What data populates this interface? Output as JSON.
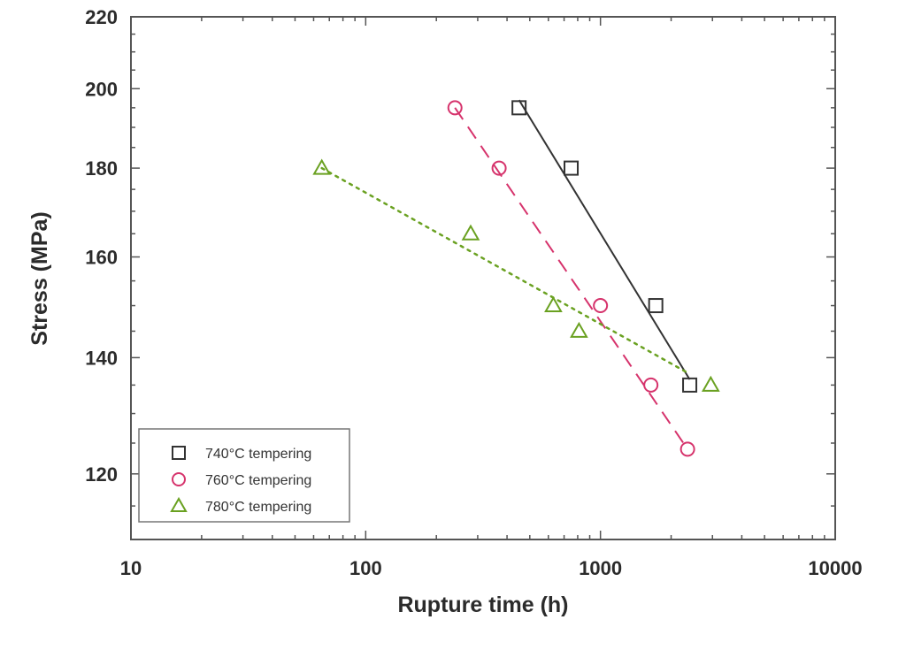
{
  "chart_data": {
    "type": "scatter",
    "title": "",
    "xlabel": "Rupture time (h)",
    "ylabel": "Stress (MPa)",
    "x_scale": "log",
    "y_scale": "log",
    "xlim": [
      10,
      10000
    ],
    "ylim": [
      110,
      220
    ],
    "x_ticks": [
      10,
      100,
      1000,
      10000
    ],
    "x_tick_labels": [
      "10",
      "100",
      "1000",
      "10000"
    ],
    "y_ticks": [
      120,
      140,
      160,
      180,
      200,
      220
    ],
    "y_tick_labels": [
      "120",
      "140",
      "160",
      "180",
      "200",
      "220"
    ],
    "grid": false,
    "legend_position": "bottom-left",
    "series": [
      {
        "name": "740°C tempering",
        "marker": "square",
        "line_style": "solid",
        "color": "#333333",
        "points": [
          [
            450,
            195
          ],
          [
            750,
            180
          ],
          [
            1720,
            150
          ],
          [
            2400,
            135
          ]
        ],
        "fit": [
          [
            450,
            197
          ],
          [
            2400,
            136
          ]
        ]
      },
      {
        "name": "760°C tempering",
        "marker": "circle",
        "line_style": "dashed",
        "color": "#d6336c",
        "points": [
          [
            240,
            195
          ],
          [
            370,
            180
          ],
          [
            1000,
            150
          ],
          [
            1640,
            135
          ],
          [
            2350,
            124
          ]
        ],
        "fit": [
          [
            240,
            195
          ],
          [
            2350,
            124
          ]
        ]
      },
      {
        "name": "780°C tempering",
        "marker": "triangle",
        "line_style": "dotted",
        "color": "#6aa121",
        "points": [
          [
            65,
            180
          ],
          [
            280,
            165
          ],
          [
            630,
            150
          ],
          [
            810,
            145
          ],
          [
            2950,
            135
          ]
        ],
        "fit": [
          [
            65,
            180
          ],
          [
            2400,
            137
          ]
        ]
      }
    ]
  }
}
